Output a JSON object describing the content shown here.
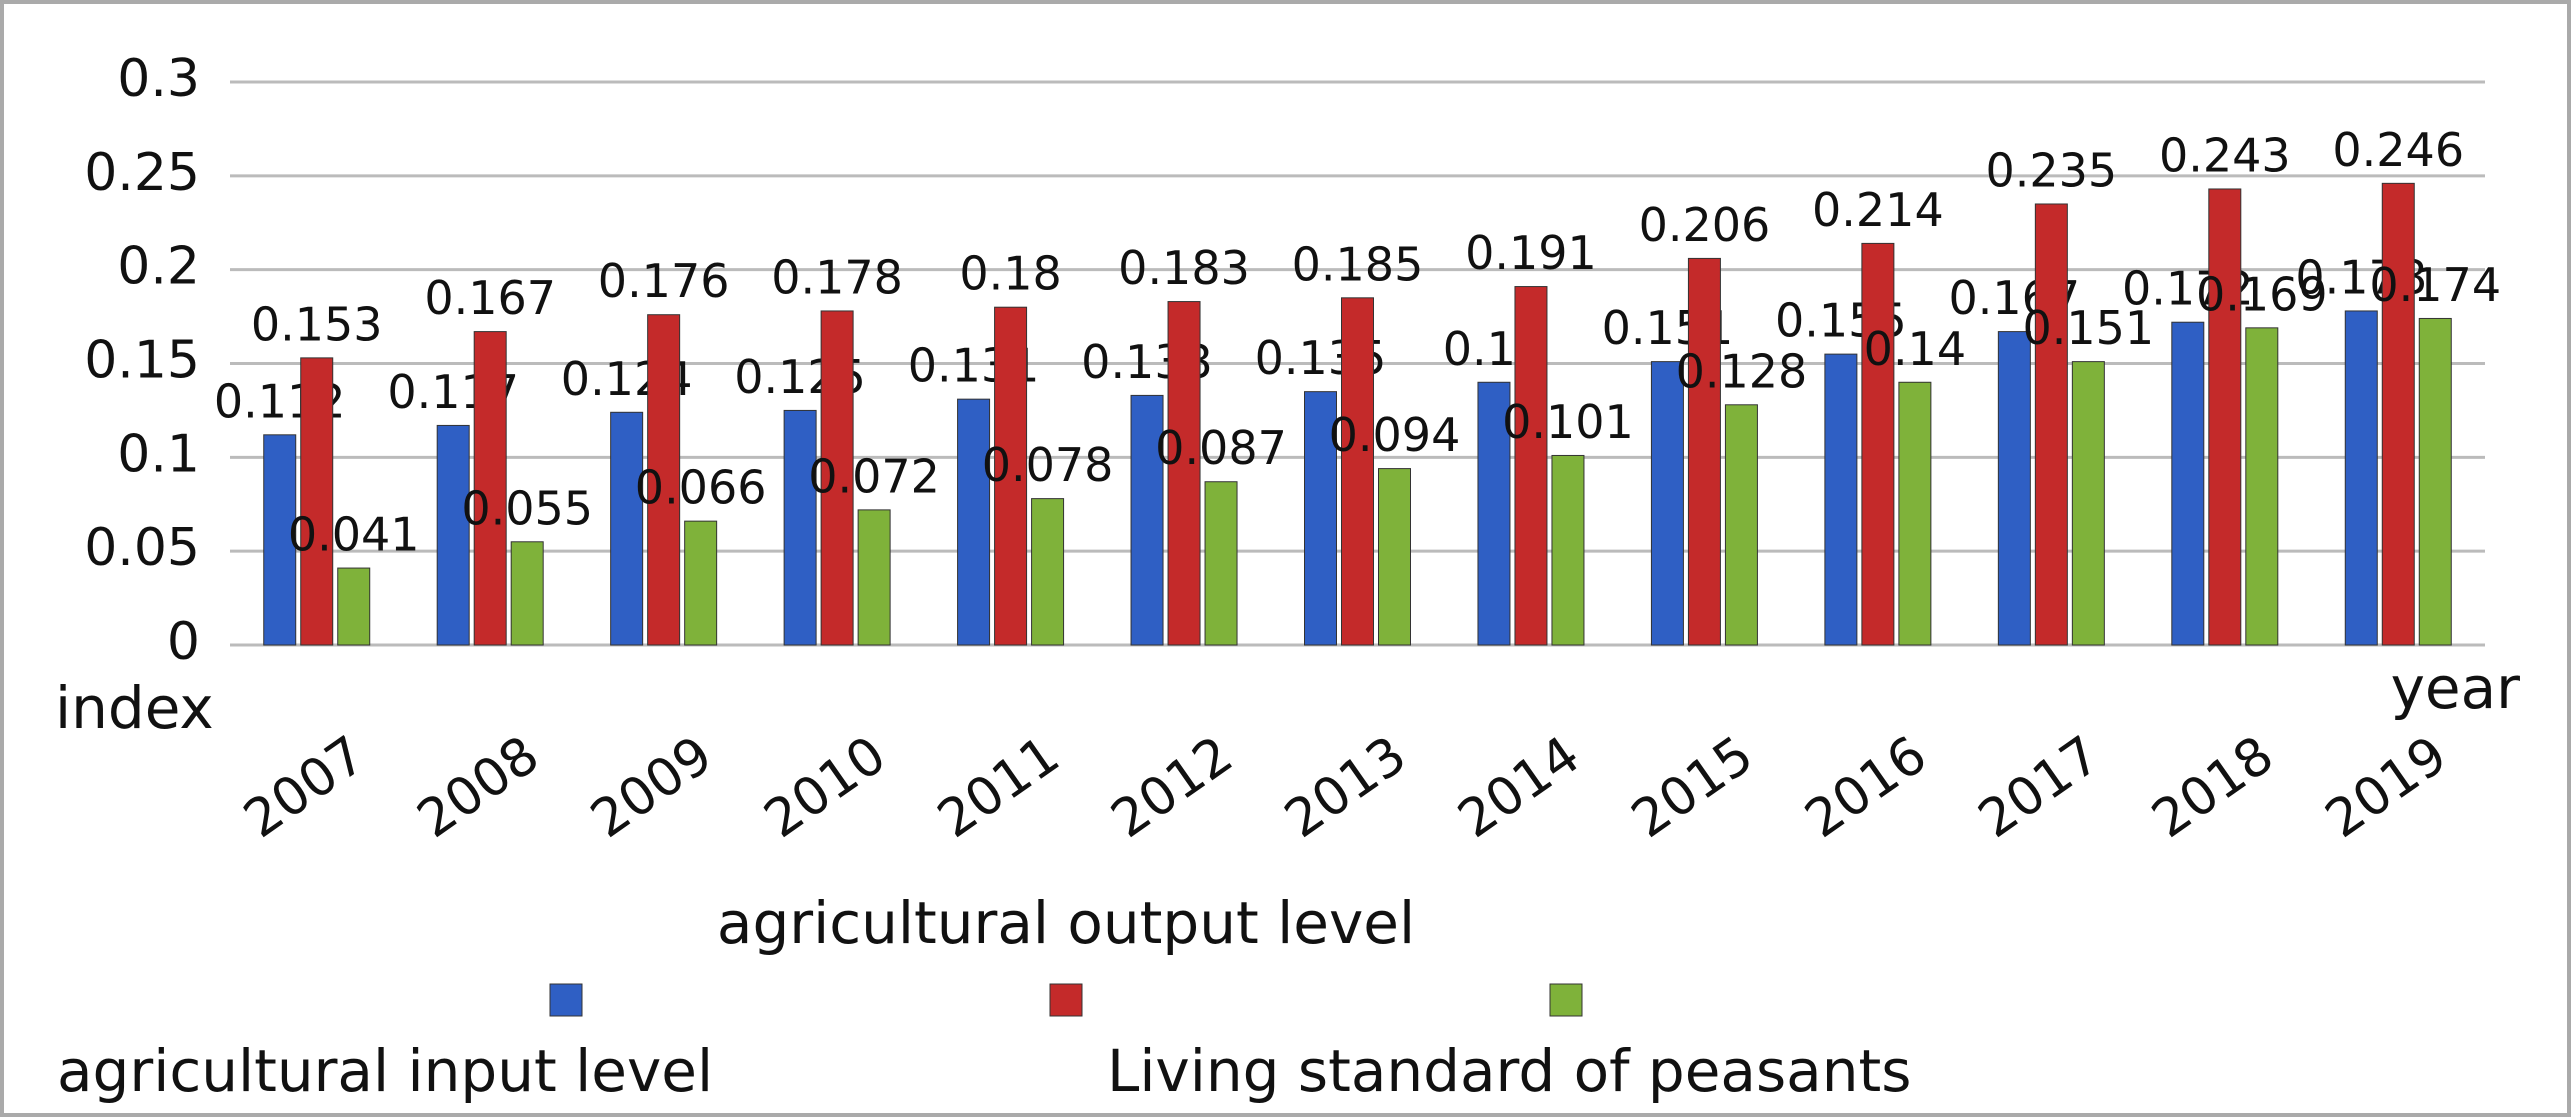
{
  "chart_data": {
    "type": "bar",
    "y_axis_label": "index",
    "x_axis_label": "year",
    "categories": [
      "2007",
      "2008",
      "2009",
      "2010",
      "2011",
      "2012",
      "2013",
      "2014",
      "2015",
      "2016",
      "2017",
      "2018",
      "2019"
    ],
    "series": [
      {
        "name": "agricultural input level",
        "color": "#2f5fc4",
        "values": [
          0.112,
          0.117,
          0.124,
          0.125,
          0.131,
          0.133,
          0.135,
          0.14,
          0.151,
          0.155,
          0.167,
          0.172,
          0.178
        ]
      },
      {
        "name": "agricultural output level",
        "color": "#c42a2a",
        "values": [
          0.153,
          0.167,
          0.176,
          0.178,
          0.18,
          0.183,
          0.185,
          0.191,
          0.206,
          0.214,
          0.235,
          0.243,
          0.246
        ]
      },
      {
        "name": "Living standard of peasants",
        "color": "#7fb23a",
        "values": [
          0.041,
          0.055,
          0.066,
          0.072,
          0.078,
          0.087,
          0.094,
          0.101,
          0.128,
          0.14,
          0.151,
          0.169,
          0.174
        ]
      }
    ],
    "ylim": [
      0,
      0.3
    ],
    "yticks": [
      0,
      0.05,
      0.1,
      0.15,
      0.2,
      0.25,
      0.3
    ],
    "grid": true
  }
}
